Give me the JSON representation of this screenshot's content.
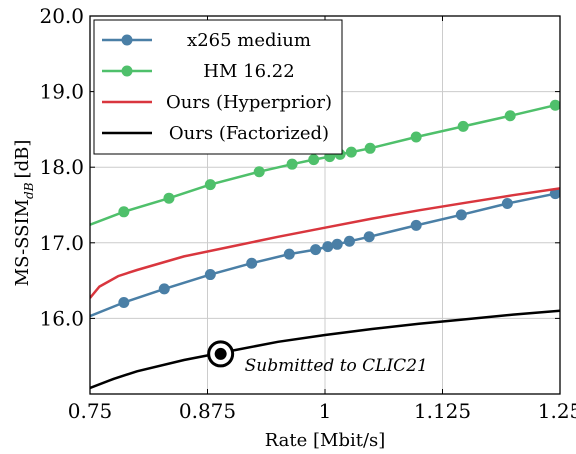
{
  "chart_data": {
    "type": "line",
    "xlabel": "Rate [Mbit/s]",
    "ylabel": "MS-SSIM",
    "ylabel_subscript": "dB",
    "ylabel_unit": "[dB]",
    "xlim": [
      0.75,
      1.25
    ],
    "ylim": [
      15.0,
      20.0
    ],
    "x_ticks": [
      0.75,
      0.875,
      1.0,
      1.125,
      1.25
    ],
    "x_tick_labels": [
      "0.75",
      "0.875",
      "1",
      "1.125",
      "1.25"
    ],
    "y_ticks": [
      16.0,
      17.0,
      18.0,
      19.0,
      20.0
    ],
    "y_tick_labels": [
      "16.0",
      "17.0",
      "18.0",
      "19.0",
      "20.0"
    ],
    "grid": true,
    "legend_position": "top-left",
    "series": [
      {
        "name": "x265 medium",
        "color": "#4a7fa6",
        "markers": true,
        "x": [
          0.75,
          0.786,
          0.829,
          0.878,
          0.922,
          0.962,
          0.99,
          1.003,
          1.013,
          1.026,
          1.047,
          1.097,
          1.145,
          1.194,
          1.245
        ],
        "y": [
          16.03,
          16.21,
          16.39,
          16.58,
          16.73,
          16.85,
          16.91,
          16.95,
          16.98,
          17.02,
          17.08,
          17.23,
          17.37,
          17.52,
          17.65
        ]
      },
      {
        "name": "HM 16.22",
        "color": "#4fc06b",
        "markers": true,
        "x": [
          0.75,
          0.786,
          0.834,
          0.878,
          0.93,
          0.965,
          0.988,
          1.005,
          1.016,
          1.028,
          1.048,
          1.097,
          1.147,
          1.197,
          1.245
        ],
        "y": [
          17.24,
          17.41,
          17.59,
          17.77,
          17.94,
          18.04,
          18.1,
          18.14,
          18.17,
          18.2,
          18.25,
          18.4,
          18.54,
          18.68,
          18.82
        ]
      },
      {
        "name": "Ours (Hyperprior)",
        "color": "#d9363e",
        "markers": false,
        "x": [
          0.75,
          0.76,
          0.78,
          0.8,
          0.85,
          0.9,
          0.95,
          1.0,
          1.05,
          1.1,
          1.15,
          1.2,
          1.25
        ],
        "y": [
          16.27,
          16.42,
          16.56,
          16.64,
          16.82,
          16.95,
          17.08,
          17.2,
          17.32,
          17.43,
          17.53,
          17.63,
          17.72
        ]
      },
      {
        "name": "Ours (Factorized)",
        "color": "#000000",
        "markers": false,
        "x": [
          0.75,
          0.775,
          0.8,
          0.85,
          0.9,
          0.95,
          1.0,
          1.05,
          1.1,
          1.15,
          1.2,
          1.25
        ],
        "y": [
          15.08,
          15.2,
          15.3,
          15.45,
          15.57,
          15.69,
          15.78,
          15.86,
          15.93,
          15.99,
          16.05,
          16.1
        ]
      }
    ],
    "annotations": [
      {
        "text": "Submitted to CLIC21",
        "x": 0.889,
        "y": 15.53
      }
    ]
  }
}
